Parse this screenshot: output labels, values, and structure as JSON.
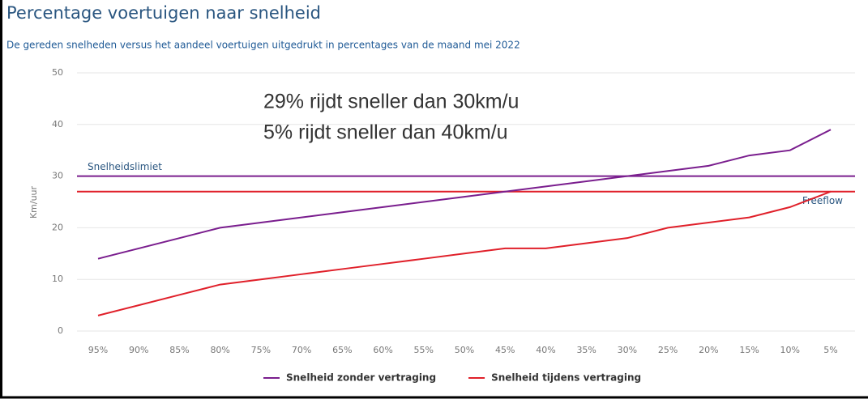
{
  "chart_data": {
    "type": "line",
    "title": "Percentage voertuigen naar snelheid",
    "subtitle": "De gereden snelheden versus het aandeel voertuigen uitgedrukt in percentages van de maand mei 2022",
    "y_label": "Km/uur",
    "categories": [
      "95%",
      "90%",
      "85%",
      "80%",
      "75%",
      "70%",
      "65%",
      "60%",
      "55%",
      "50%",
      "45%",
      "40%",
      "35%",
      "30%",
      "25%",
      "20%",
      "15%",
      "10%",
      "5%"
    ],
    "series": [
      {
        "name": "Snelheid zonder vertraging",
        "color": "#7a1e8e",
        "values": [
          14,
          16,
          18,
          20,
          21,
          22,
          23,
          24,
          25,
          26,
          27,
          28,
          29,
          30,
          31,
          32,
          34,
          35,
          39
        ]
      },
      {
        "name": "Snelheid tijdens vertraging",
        "color": "#e0202a",
        "values": [
          3,
          5,
          7,
          9,
          10,
          11,
          12,
          13,
          14,
          15,
          16,
          16,
          17,
          18,
          20,
          21,
          22,
          24,
          27
        ]
      }
    ],
    "reference_lines": [
      {
        "label": "Snelheidslimiet",
        "value": 30,
        "color": "#7a1e8e"
      },
      {
        "label": "Freeflow",
        "value": 27,
        "color": "#e0202a"
      }
    ],
    "annotations": [
      "29% rijdt sneller dan 30km/u",
      "5% rijdt sneller dan 40km/u"
    ],
    "ylim": [
      0,
      50
    ],
    "yticks": [
      0,
      10,
      20,
      30,
      40,
      50
    ],
    "grid": true,
    "legend": "bottom"
  }
}
